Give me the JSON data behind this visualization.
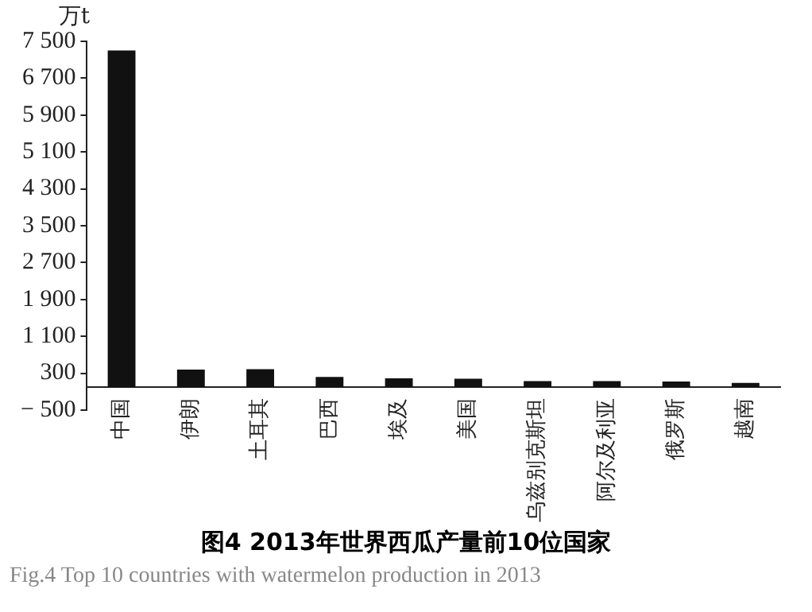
{
  "chart_data": {
    "type": "bar",
    "title": "图4 2013年世界西瓜产量前10位国家",
    "subtitle": "Fig.4 Top 10 countries with watermelon production in 2013",
    "ylabel": "万t",
    "categories": [
      "中国",
      "伊朗",
      "土耳其",
      "巴西",
      "埃及",
      "美国",
      "乌兹别克斯坦",
      "阿尔及利亚",
      "俄罗斯",
      "越南"
    ],
    "values": [
      7300,
      380,
      390,
      220,
      190,
      180,
      130,
      130,
      120,
      90
    ],
    "color": "#111111",
    "ylim": [
      -500,
      7500
    ],
    "yticks": [
      {
        "value": -500,
        "label": "− 500"
      },
      {
        "value": 300,
        "label": "300"
      },
      {
        "value": 1100,
        "label": "1 100"
      },
      {
        "value": 1900,
        "label": "1 900"
      },
      {
        "value": 2700,
        "label": "2 700"
      },
      {
        "value": 3500,
        "label": "3 500"
      },
      {
        "value": 4300,
        "label": "4 300"
      },
      {
        "value": 5100,
        "label": "5 100"
      },
      {
        "value": 5900,
        "label": "5 900"
      },
      {
        "value": 6700,
        "label": "6 700"
      },
      {
        "value": 7500,
        "label": "7 500"
      }
    ],
    "grid": false,
    "legend": false
  }
}
